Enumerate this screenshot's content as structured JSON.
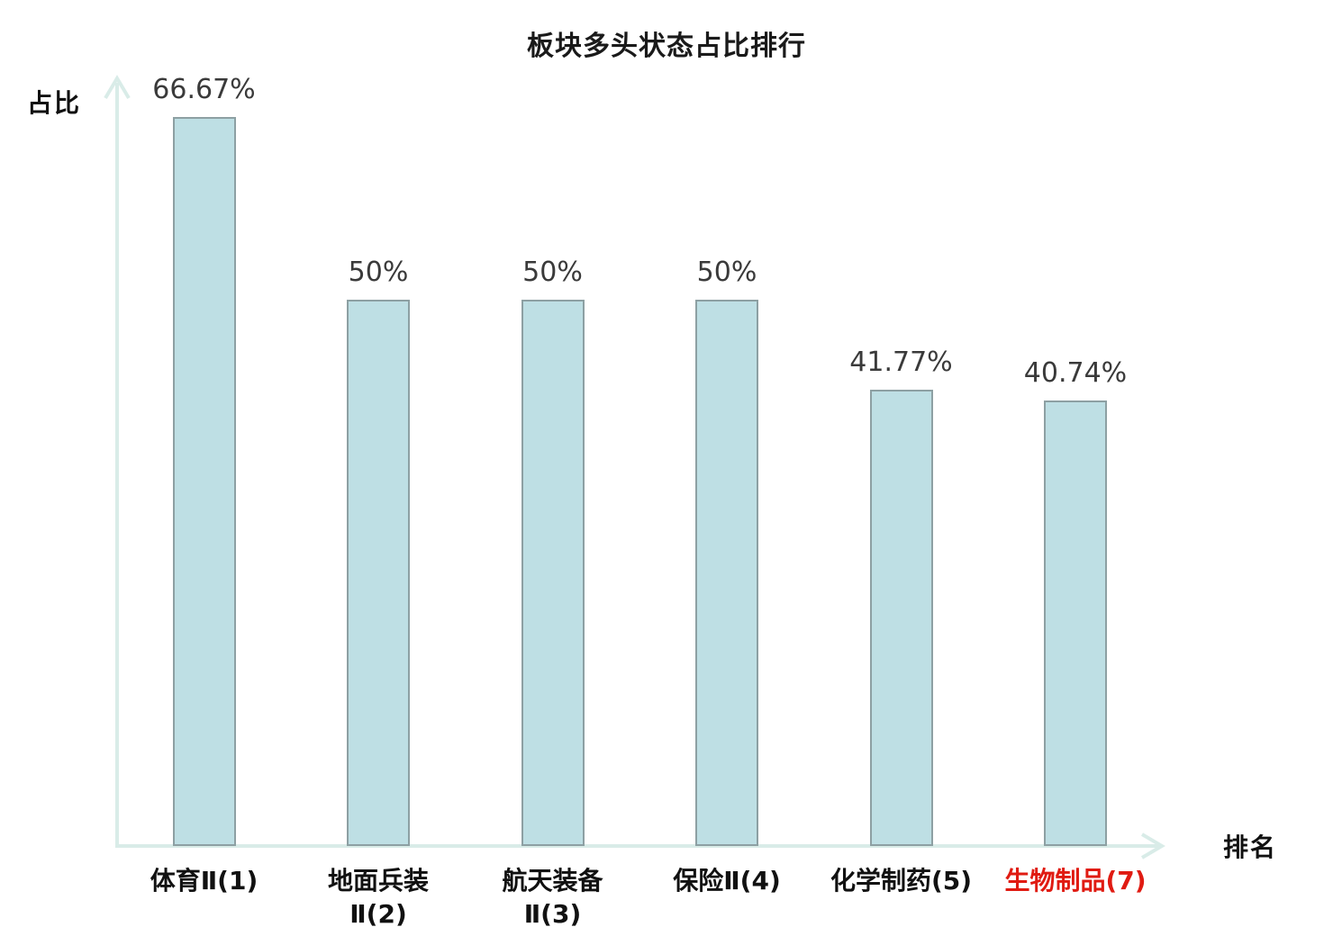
{
  "title": "板块多头状态占比排行",
  "axes": {
    "y_label": "占比",
    "x_label": "排名"
  },
  "colors": {
    "bar_fill": "#bedfe4",
    "bar_border": "#8da0a3",
    "axis": "#d9ece8",
    "title_text": "#1a1a1a",
    "value_text": "#3a3a3a",
    "tick_text": "#111111",
    "highlight_text": "#e01b12",
    "background": "#ffffff"
  },
  "chart_data": {
    "type": "bar",
    "title": "板块多头状态占比排行",
    "xlabel": "排名",
    "ylabel": "占比",
    "ylim": [
      0,
      70
    ],
    "grid": false,
    "legend": false,
    "categories": [
      "体育Ⅱ(1)",
      "地面兵装Ⅱ(2)",
      "航天装备Ⅱ(3)",
      "保险Ⅱ(4)",
      "化学制药(5)",
      "生物制品(7)"
    ],
    "values": [
      66.67,
      50,
      50,
      50,
      41.77,
      40.74
    ],
    "bars": [
      {
        "label_lines": [
          "体育Ⅱ(1)"
        ],
        "value": 66.67,
        "value_label": "66.67%",
        "highlighted": false
      },
      {
        "label_lines": [
          "地面兵装",
          "Ⅱ(2)"
        ],
        "value": 50,
        "value_label": "50%",
        "highlighted": false
      },
      {
        "label_lines": [
          "航天装备",
          "Ⅱ(3)"
        ],
        "value": 50,
        "value_label": "50%",
        "highlighted": false
      },
      {
        "label_lines": [
          "保险Ⅱ(4)"
        ],
        "value": 50,
        "value_label": "50%",
        "highlighted": false
      },
      {
        "label_lines": [
          "化学制药(5)"
        ],
        "value": 41.77,
        "value_label": "41.77%",
        "highlighted": false
      },
      {
        "label_lines": [
          "生物制品(7)"
        ],
        "value": 40.74,
        "value_label": "40.74%",
        "highlighted": true
      }
    ]
  }
}
